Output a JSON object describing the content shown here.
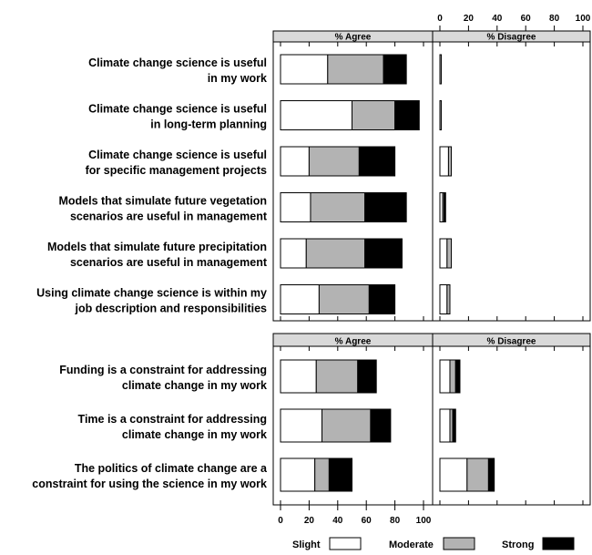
{
  "chart_data": {
    "type": "bar",
    "stacked": true,
    "orientation": "horizontal",
    "legend": {
      "placement": "bottom",
      "entries": [
        {
          "label": "Slight",
          "color": "#ffffff"
        },
        {
          "label": "Moderate",
          "color": "#b3b3b3"
        },
        {
          "label": "Strong",
          "color": "#000000"
        }
      ]
    },
    "x_ticks": [
      "0",
      "20",
      "40",
      "60",
      "80",
      "100"
    ],
    "xlim": [
      0,
      100
    ],
    "series_names": [
      "Slight",
      "Moderate",
      "Strong"
    ],
    "groups": [
      {
        "agree_header": "% Agree",
        "disagree_header": "% Disagree",
        "items": [
          {
            "lines": [
              "Climate change science is useful",
              "in my work"
            ],
            "agree": [
              33,
              39,
              16
            ],
            "disagree": [
              0,
              1,
              0
            ]
          },
          {
            "lines": [
              "Climate change science is useful",
              "in long-term planning"
            ],
            "agree": [
              50,
              30,
              17
            ],
            "disagree": [
              0,
              1,
              0
            ]
          },
          {
            "lines": [
              "Climate change science is useful",
              "for specific management projects"
            ],
            "agree": [
              20,
              35,
              25
            ],
            "disagree": [
              6,
              2,
              0
            ]
          },
          {
            "lines": [
              "Models that simulate future vegetation",
              "scenarios are useful in management"
            ],
            "agree": [
              21,
              38,
              29
            ],
            "disagree": [
              2,
              1,
              1
            ]
          },
          {
            "lines": [
              "Models that simulate future precipitation",
              "scenarios are useful in management"
            ],
            "agree": [
              18,
              41,
              26
            ],
            "disagree": [
              5,
              3,
              0
            ]
          },
          {
            "lines": [
              "Using climate change science is within my",
              "job description and responsibilities"
            ],
            "agree": [
              27,
              35,
              18
            ],
            "disagree": [
              5,
              2,
              0
            ]
          }
        ]
      },
      {
        "agree_header": "% Agree",
        "disagree_header": "% Disagree",
        "items": [
          {
            "lines": [
              "Funding is a constraint for addressing",
              "climate change in my work"
            ],
            "agree": [
              25,
              29,
              13
            ],
            "disagree": [
              7,
              4,
              3
            ]
          },
          {
            "lines": [
              "Time is a constraint for addressing",
              "climate change in my work"
            ],
            "agree": [
              29,
              34,
              14
            ],
            "disagree": [
              7,
              2,
              2
            ]
          },
          {
            "lines": [
              "The politics of climate change are a",
              "constraint for using the science in my work"
            ],
            "agree": [
              24,
              10,
              16
            ],
            "disagree": [
              19,
              15,
              4
            ]
          }
        ]
      }
    ]
  }
}
